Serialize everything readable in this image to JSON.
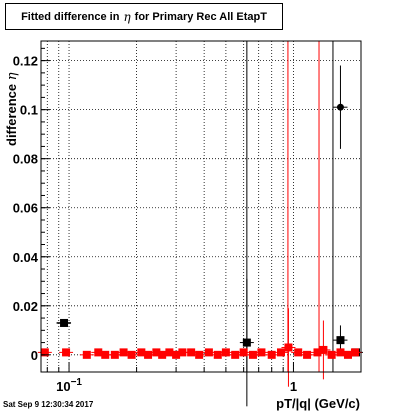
{
  "chart_data": {
    "type": "scatter",
    "title_prefix": "Fitted difference in",
    "title_symbol": "η",
    "title_suffix": "for Primary Rec All EtapT",
    "ylabel_prefix": "difference",
    "ylabel_symbol": "η",
    "xlabel": "pT/|q| (GeV/c)",
    "timestamp": "Sat Sep  9 12:30:34 2017",
    "x_scale": "log",
    "xlim": [
      0.075,
      2.0
    ],
    "ylim": [
      -0.007,
      0.128
    ],
    "grid": true,
    "y_ticks": [
      {
        "v": 0,
        "label": "0"
      },
      {
        "v": 0.02,
        "label": "0.02"
      },
      {
        "v": 0.04,
        "label": "0.04"
      },
      {
        "v": 0.06,
        "label": "0.06"
      },
      {
        "v": 0.08,
        "label": "0.08"
      },
      {
        "v": 0.1,
        "label": "0.1"
      },
      {
        "v": 0.12,
        "label": "0.12"
      }
    ],
    "x_major_ticks": [
      {
        "v": 0.1,
        "label_base": "10",
        "label_exp": "−1"
      },
      {
        "v": 1,
        "label_base": "1",
        "label_exp": ""
      }
    ],
    "series": [
      {
        "color": "#000000",
        "marker": "square",
        "points": [
          {
            "x": 0.095,
            "y": 0.013,
            "xerr": 0.007
          },
          {
            "x": 0.62,
            "y": 0.005,
            "yerr": 0.026
          },
          {
            "x": 1.62,
            "y": 0.101,
            "yerr": 0.017
          },
          {
            "x": 1.62,
            "y": 0.006,
            "yerr": 0.006
          },
          {
            "x": 1.9,
            "y": 0.001
          }
        ]
      },
      {
        "color": "#ff0000",
        "marker": "square",
        "points": [
          {
            "x": 0.078,
            "y": 0.001
          },
          {
            "x": 0.097,
            "y": 0.001
          },
          {
            "x": 0.12,
            "y": 0.0
          },
          {
            "x": 0.135,
            "y": 0.001
          },
          {
            "x": 0.145,
            "y": 0.0
          },
          {
            "x": 0.16,
            "y": 0.0
          },
          {
            "x": 0.175,
            "y": 0.001
          },
          {
            "x": 0.19,
            "y": 0.0
          },
          {
            "x": 0.21,
            "y": 0.001
          },
          {
            "x": 0.225,
            "y": 0.0
          },
          {
            "x": 0.245,
            "y": 0.001
          },
          {
            "x": 0.26,
            "y": 0.0
          },
          {
            "x": 0.28,
            "y": 0.001
          },
          {
            "x": 0.3,
            "y": 0.0
          },
          {
            "x": 0.32,
            "y": 0.001
          },
          {
            "x": 0.35,
            "y": 0.001
          },
          {
            "x": 0.38,
            "y": 0.0
          },
          {
            "x": 0.42,
            "y": 0.001
          },
          {
            "x": 0.46,
            "y": 0.0
          },
          {
            "x": 0.5,
            "y": 0.001
          },
          {
            "x": 0.55,
            "y": 0.0
          },
          {
            "x": 0.6,
            "y": 0.001
          },
          {
            "x": 0.66,
            "y": 0.0
          },
          {
            "x": 0.72,
            "y": 0.001
          },
          {
            "x": 0.8,
            "y": 0.0
          },
          {
            "x": 0.88,
            "y": 0.001
          },
          {
            "x": 0.95,
            "y": 0.003,
            "yerr": 0.016
          },
          {
            "x": 1.05,
            "y": 0.001
          },
          {
            "x": 1.15,
            "y": 0.0
          },
          {
            "x": 1.28,
            "y": 0.001
          },
          {
            "x": 1.36,
            "y": 0.002,
            "yerr": 0.012
          },
          {
            "x": 1.48,
            "y": 0.0
          },
          {
            "x": 1.62,
            "y": 0.001
          },
          {
            "x": 1.75,
            "y": 0.0
          },
          {
            "x": 1.88,
            "y": 0.001
          }
        ]
      }
    ],
    "vertical_lines": [
      {
        "x": 0.62,
        "color": "#000000"
      },
      {
        "x": 1.5,
        "color": "#000000"
      },
      {
        "x": 0.945,
        "color": "#ff0000"
      },
      {
        "x": 1.3,
        "color": "#ff0000"
      }
    ]
  }
}
